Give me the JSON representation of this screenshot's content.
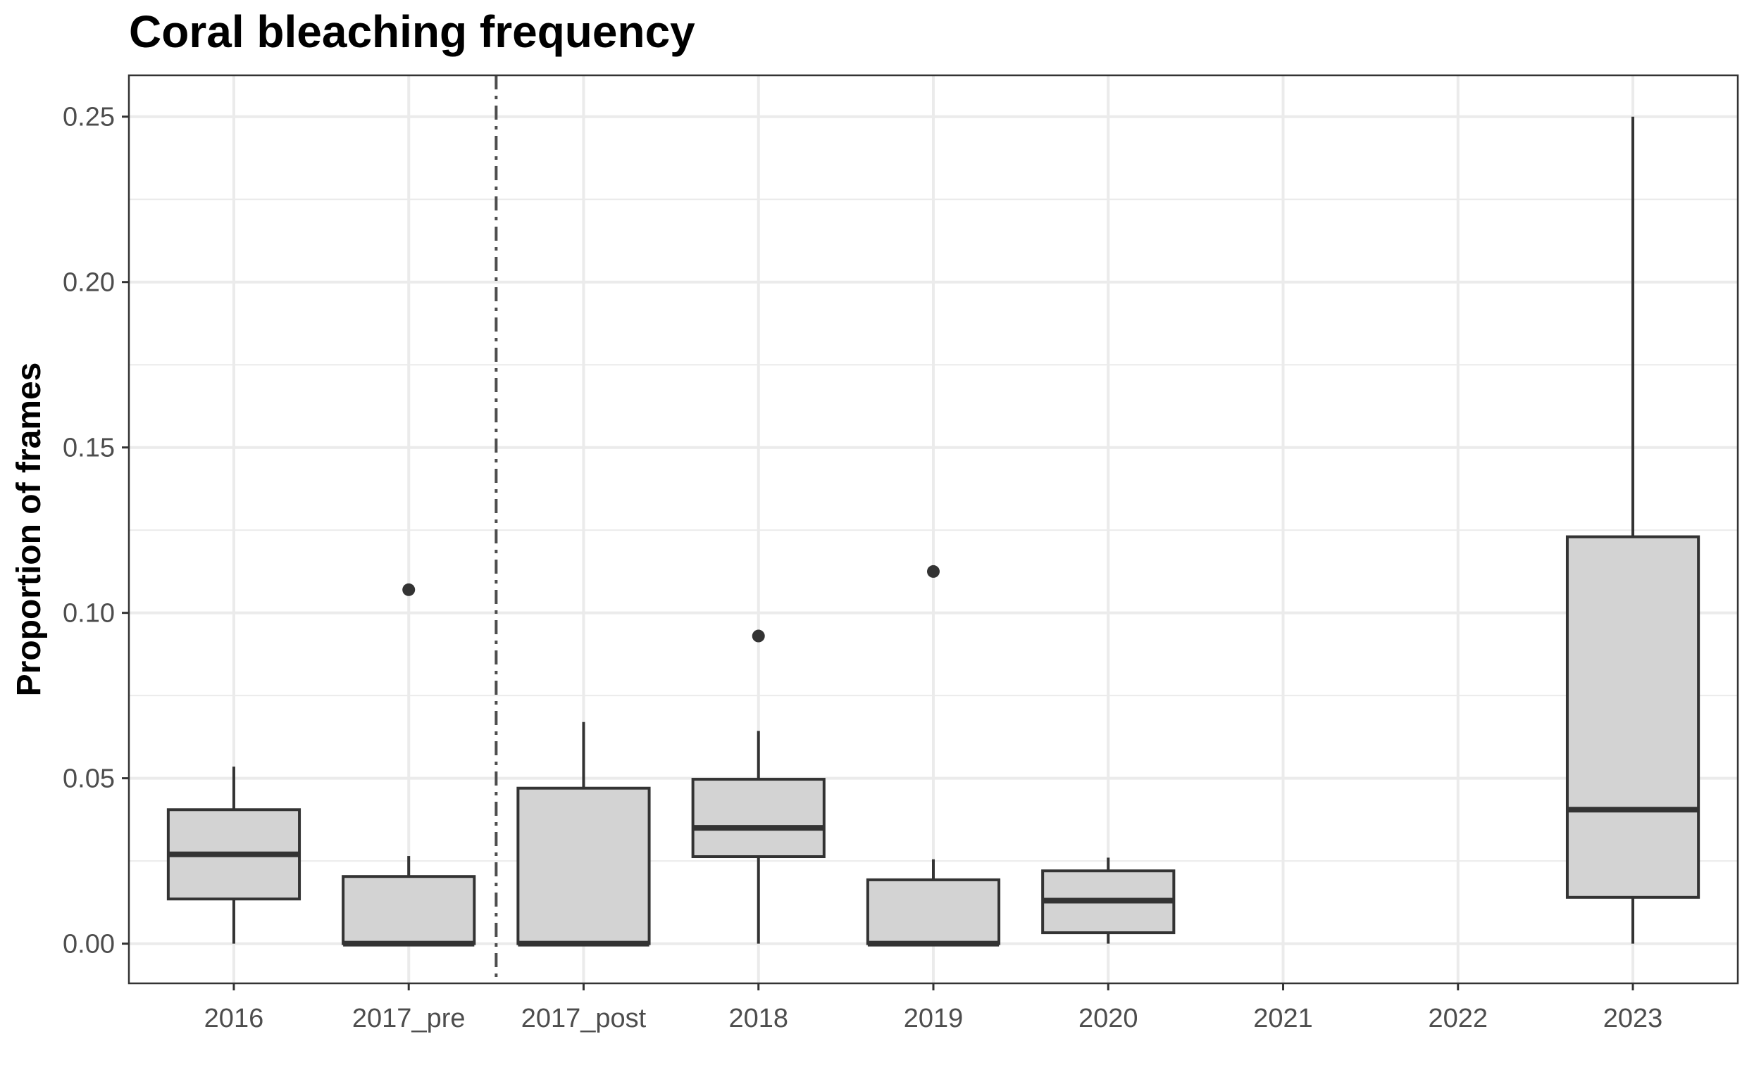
{
  "chart_data": {
    "type": "box",
    "title": "Coral bleaching frequency",
    "xlabel": "",
    "ylabel": "Proportion of frames",
    "categories": [
      "2016",
      "2017_pre",
      "2017_post",
      "2018",
      "2019",
      "2020",
      "2021",
      "2022",
      "2023"
    ],
    "ylim": [
      -0.012,
      0.2625
    ],
    "yticks": [
      "0.00",
      "0.05",
      "0.10",
      "0.15",
      "0.20",
      "0.25"
    ],
    "grid": true,
    "reference_line": {
      "between": [
        "2017_pre",
        "2017_post"
      ],
      "style": "dash-dot"
    },
    "boxes": [
      {
        "category": "2016",
        "whisker_low": 0.0,
        "q1": 0.0135,
        "median": 0.027,
        "q3": 0.0405,
        "whisker_high": 0.0535,
        "outliers": []
      },
      {
        "category": "2017_pre",
        "whisker_low": 0.0,
        "q1": 0.0,
        "median": 0.0,
        "q3": 0.0203,
        "whisker_high": 0.0265,
        "outliers": [
          0.107
        ]
      },
      {
        "category": "2017_post",
        "whisker_low": 0.0,
        "q1": 0.0,
        "median": 0.0,
        "q3": 0.047,
        "whisker_high": 0.067,
        "outliers": []
      },
      {
        "category": "2018",
        "whisker_low": 0.0,
        "q1": 0.0263,
        "median": 0.035,
        "q3": 0.0497,
        "whisker_high": 0.0643,
        "outliers": [
          0.093
        ]
      },
      {
        "category": "2019",
        "whisker_low": 0.0,
        "q1": 0.0,
        "median": 0.0,
        "q3": 0.0193,
        "whisker_high": 0.0255,
        "outliers": [
          0.1125
        ]
      },
      {
        "category": "2020",
        "whisker_low": 0.0,
        "q1": 0.0033,
        "median": 0.013,
        "q3": 0.022,
        "whisker_high": 0.026,
        "outliers": []
      },
      {
        "category": "2023",
        "whisker_low": 0.0,
        "q1": 0.014,
        "median": 0.0405,
        "q3": 0.123,
        "whisker_high": 0.25,
        "outliers": []
      }
    ],
    "colors": {
      "box_fill": "#d3d3d3",
      "box_stroke": "#333333",
      "grid": "#ebebeb",
      "panel_border": "#333333",
      "reference_line": "#4d4d4d"
    }
  }
}
